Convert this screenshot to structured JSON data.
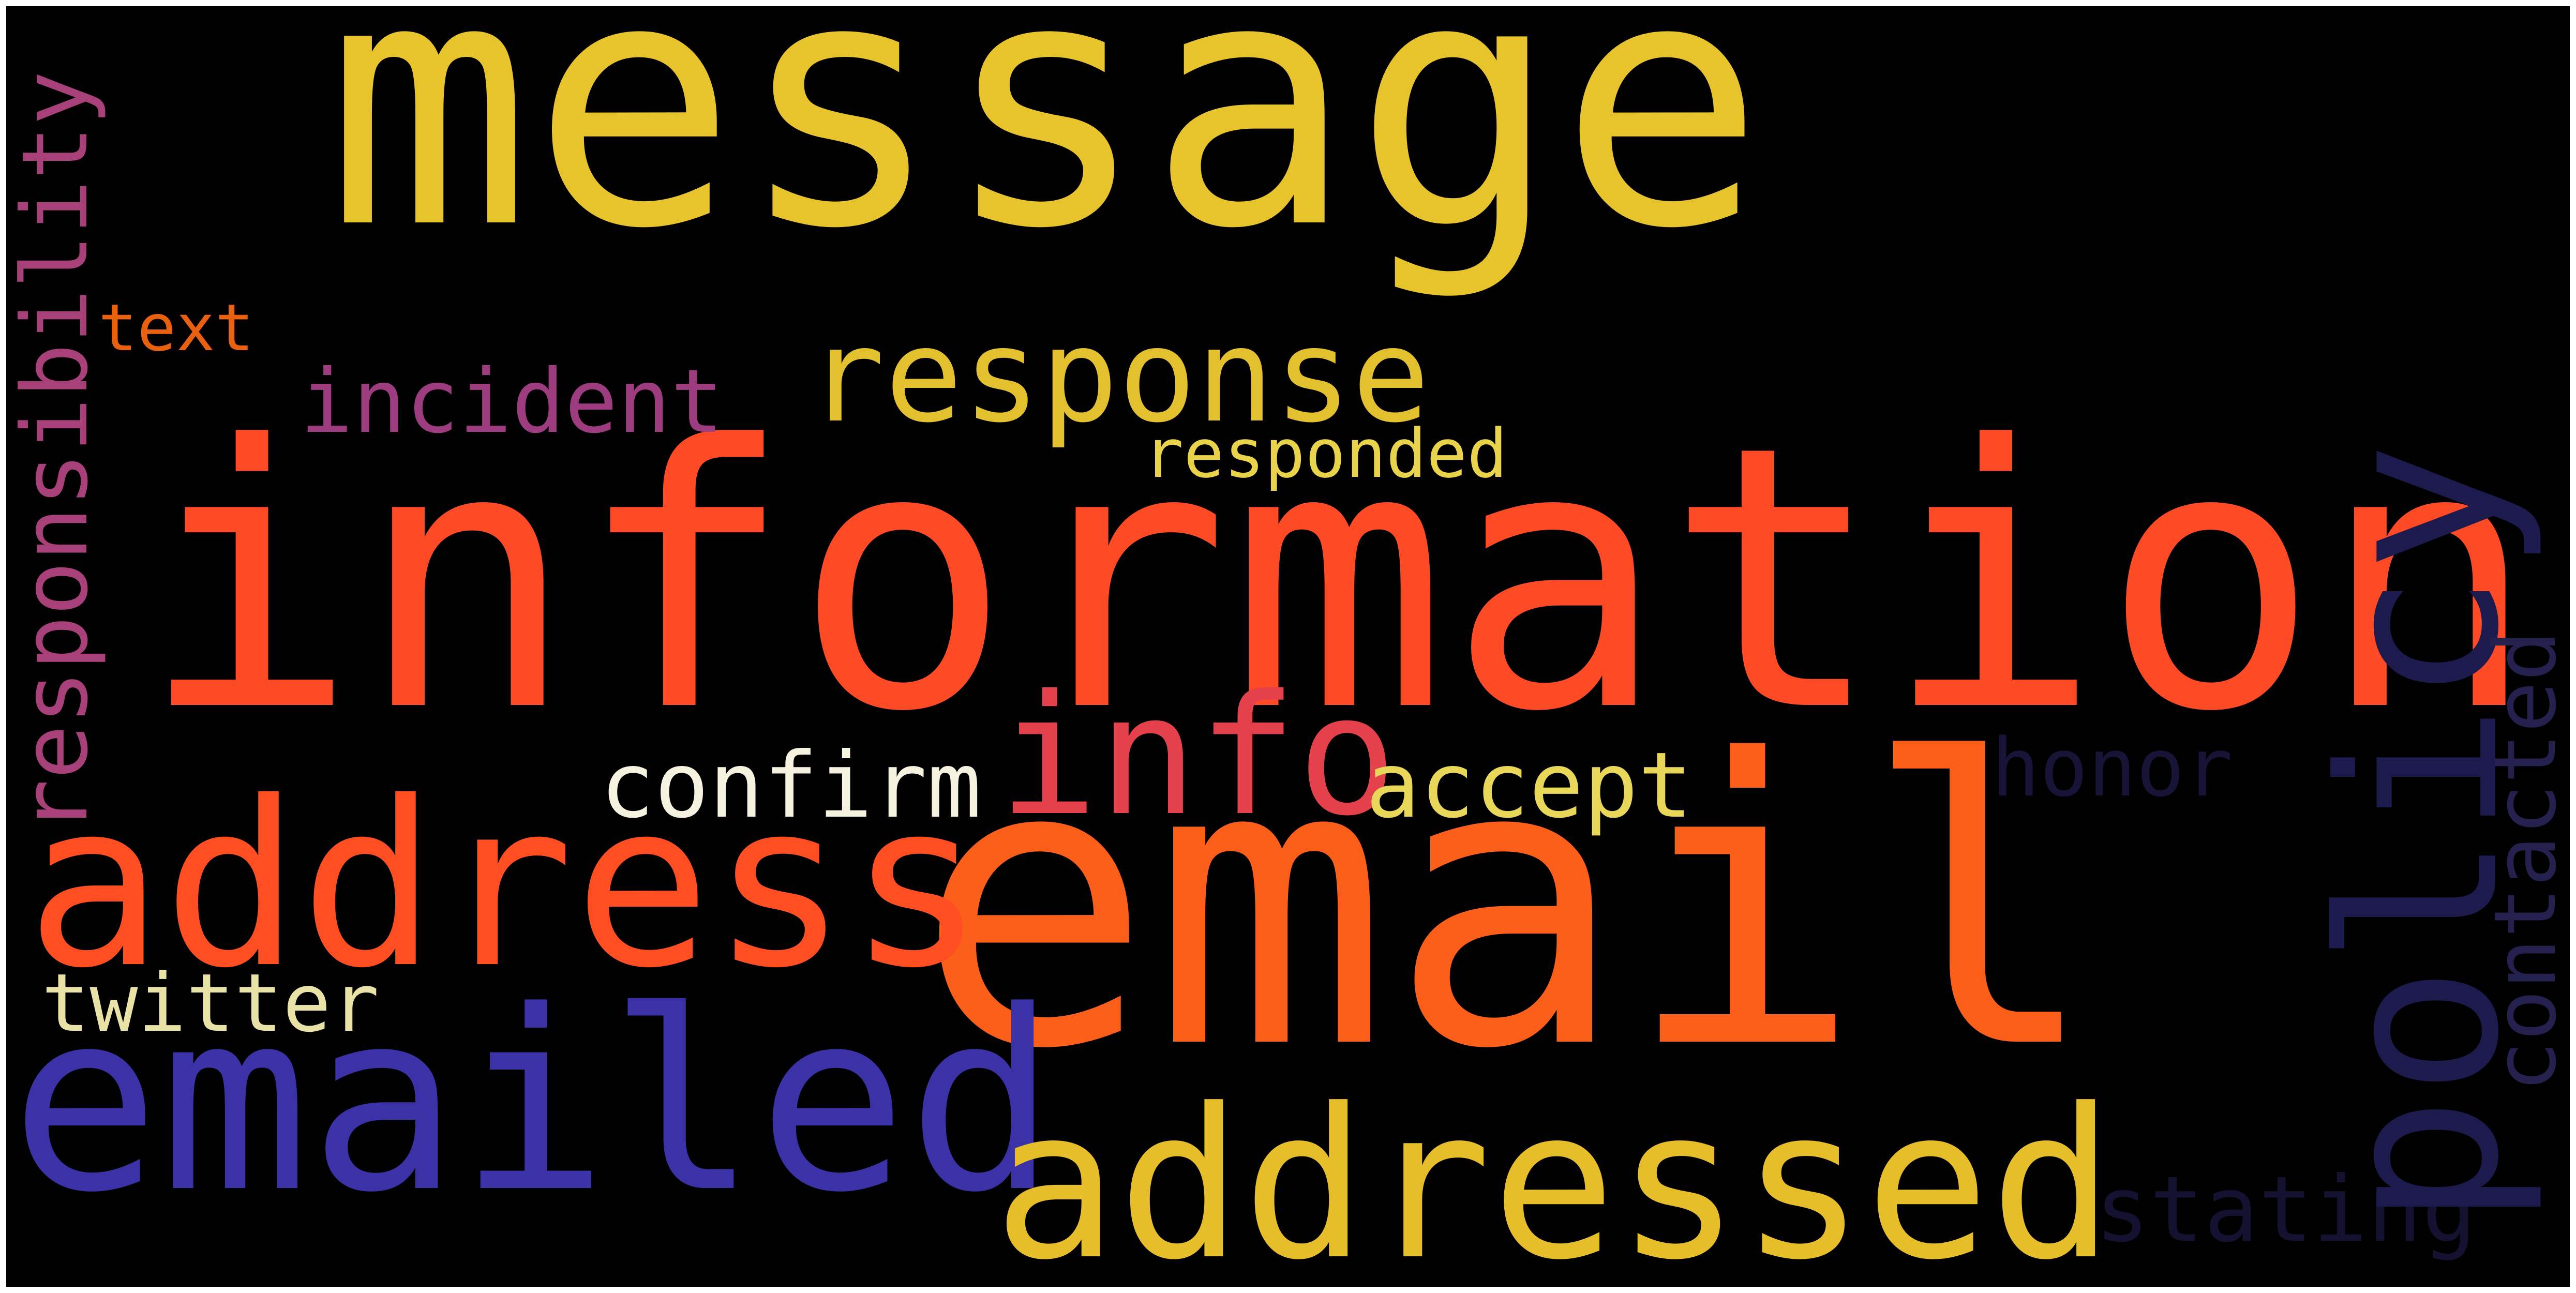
{
  "words": {
    "message": {
      "text": "message",
      "color": "#e7c32c"
    },
    "information": {
      "text": "information",
      "color": "#ff4a26"
    },
    "email": {
      "text": "email",
      "color": "#fb5f19"
    },
    "emailed": {
      "text": "emailed",
      "color": "#3a32a6"
    },
    "addressed": {
      "text": "addressed",
      "color": "#e6be2a"
    },
    "address": {
      "text": "address",
      "color": "#ff4e22"
    },
    "response": {
      "text": "response",
      "color": "#e3c12e"
    },
    "policy": {
      "text": "policy",
      "color": "#1d1b4e"
    },
    "responsibility": {
      "text": "responsibility",
      "color": "#a8407a"
    },
    "incident": {
      "text": "incident",
      "color": "#9d3d80"
    },
    "info": {
      "text": "info",
      "color": "#e5414d"
    },
    "confirm": {
      "text": "confirm",
      "color": "#f5f3e0"
    },
    "accept": {
      "text": "accept",
      "color": "#e9d75a"
    },
    "honor": {
      "text": "honor",
      "color": "#171438"
    },
    "contacted": {
      "text": "contacted",
      "color": "#24214e"
    },
    "twitter": {
      "text": "twitter",
      "color": "#e9e2a6"
    },
    "responded": {
      "text": "responded",
      "color": "#e8d34a"
    },
    "text": {
      "text": "text",
      "color": "#e9600f"
    },
    "stating": {
      "text": "stating",
      "color": "#141230"
    }
  }
}
